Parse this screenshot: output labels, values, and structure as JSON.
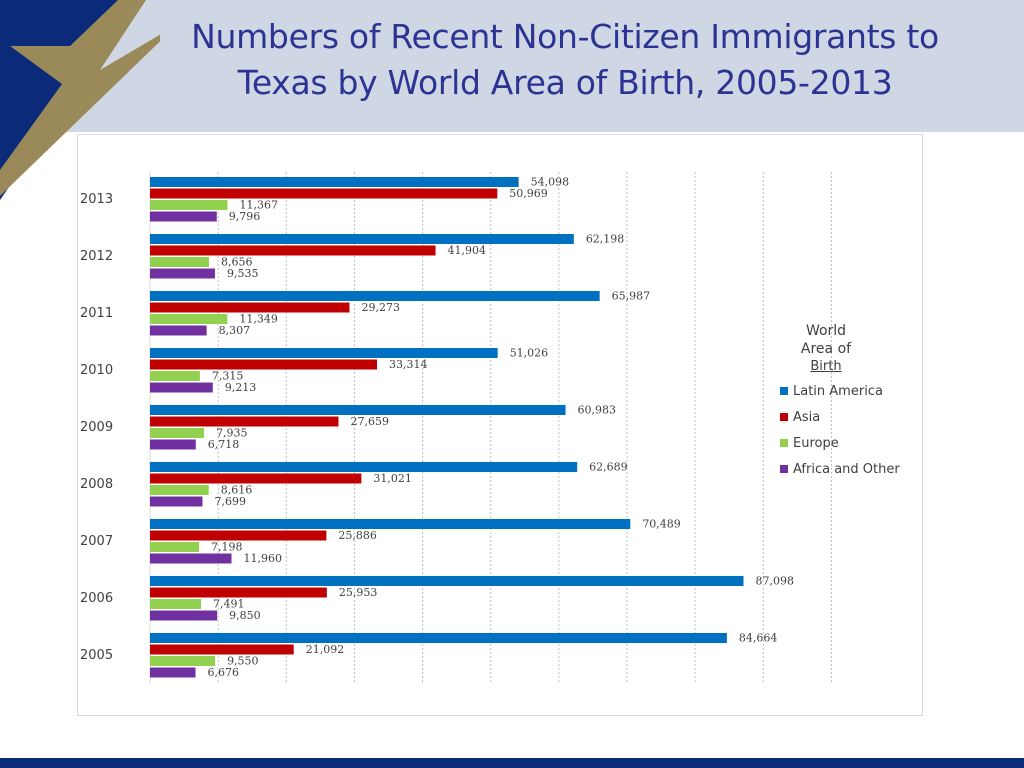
{
  "title": {
    "line1": "Numbers of Recent Non-Citizen Immigrants to",
    "line2": "Texas by World Area of Birth, 2005-2013"
  },
  "colors": {
    "header_bg": "#cfd6e4",
    "title": "#2d3393",
    "navy": "#0c2a7a",
    "gold": "#9a8a5a"
  },
  "icons": {
    "logo": "star-icon"
  },
  "chart_data": {
    "type": "bar",
    "orientation": "horizontal",
    "title": "",
    "xlabel": "",
    "ylabel": "",
    "xlim": [
      0,
      100000
    ],
    "grid": true,
    "legend_position": "right",
    "legend_title": [
      "World",
      "Area of",
      "Birth"
    ],
    "categories": [
      "2013",
      "2012",
      "2011",
      "2010",
      "2009",
      "2008",
      "2007",
      "2006",
      "2005"
    ],
    "series": [
      {
        "name": "Latin America",
        "color": "#0070c0",
        "values": [
          54098,
          62198,
          65987,
          51026,
          60983,
          62689,
          70489,
          87098,
          84664
        ],
        "labels": [
          "54,098",
          "62,198",
          "65,987",
          "51,026",
          "60,983",
          "62,689",
          "70,489",
          "87,098",
          "84,664"
        ]
      },
      {
        "name": "Asia",
        "color": "#c00000",
        "values": [
          50969,
          41904,
          29273,
          33314,
          27659,
          31021,
          25886,
          25953,
          21092
        ],
        "labels": [
          "50,969",
          "41,904",
          "29,273",
          "33,314",
          "27,659",
          "31,021",
          "25,886",
          "25,953",
          "21,092"
        ]
      },
      {
        "name": "Europe",
        "color": "#92d050",
        "values": [
          11367,
          8656,
          11349,
          7315,
          7935,
          8616,
          7198,
          7491,
          9550
        ],
        "labels": [
          "11,367",
          "8,656",
          "11,349",
          "7,315",
          "7,935",
          "8,616",
          "7,198",
          "7,491",
          "9,550"
        ]
      },
      {
        "name": "Africa and Other",
        "color": "#7030a0",
        "values": [
          9796,
          9535,
          8307,
          9213,
          6718,
          7699,
          11960,
          9850,
          6676
        ],
        "labels": [
          "9,796",
          "9,535",
          "8,307",
          "9,213",
          "6,718",
          "7,699",
          "11,960",
          "9,850",
          "6,676"
        ]
      }
    ]
  }
}
